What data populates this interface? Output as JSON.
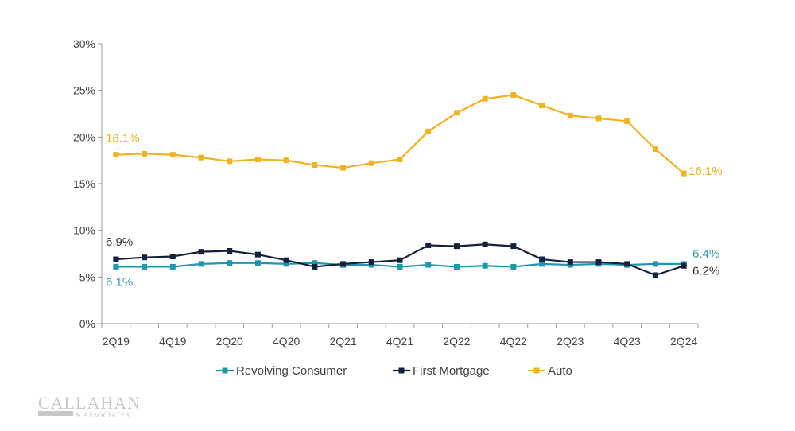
{
  "chart_data": {
    "type": "line",
    "title": "",
    "xlabel": "",
    "ylabel": "",
    "ylim": [
      0,
      30
    ],
    "yticks": [
      "0%",
      "5%",
      "10%",
      "15%",
      "20%",
      "25%",
      "30%"
    ],
    "x": [
      "2Q19",
      "3Q19",
      "4Q19",
      "1Q20",
      "2Q20",
      "3Q20",
      "4Q20",
      "1Q21",
      "2Q21",
      "3Q21",
      "4Q21",
      "1Q22",
      "2Q22",
      "3Q22",
      "4Q22",
      "1Q23",
      "2Q23",
      "3Q23",
      "4Q23",
      "1Q24",
      "2Q24"
    ],
    "xtick_labels": [
      "2Q19",
      "4Q19",
      "2Q20",
      "4Q20",
      "2Q21",
      "4Q21",
      "2Q22",
      "4Q22",
      "2Q23",
      "4Q23",
      "2Q24"
    ],
    "legend_position": "bottom",
    "grid": false,
    "series": [
      {
        "name": "Revolving Consumer",
        "color": "#1f96b0",
        "label_color": "#3a9aa4",
        "values": [
          6.1,
          6.1,
          6.1,
          6.4,
          6.5,
          6.5,
          6.4,
          6.5,
          6.3,
          6.3,
          6.1,
          6.3,
          6.1,
          6.2,
          6.1,
          6.4,
          6.3,
          6.4,
          6.3,
          6.4,
          6.4
        ],
        "start_label": "6.1%",
        "end_label": "6.4%"
      },
      {
        "name": "First Mortgage",
        "color": "#14213d",
        "label_color": "#333333",
        "values": [
          6.9,
          7.1,
          7.2,
          7.7,
          7.8,
          7.4,
          6.8,
          6.1,
          6.4,
          6.6,
          6.8,
          8.4,
          8.3,
          8.5,
          8.3,
          6.9,
          6.6,
          6.6,
          6.4,
          5.2,
          6.2
        ],
        "start_label": "6.9%",
        "end_label": "6.2%"
      },
      {
        "name": "Auto",
        "color": "#f0b323",
        "label_color": "#e8b020",
        "values": [
          18.1,
          18.2,
          18.1,
          17.8,
          17.4,
          17.6,
          17.5,
          17.0,
          16.7,
          17.2,
          17.6,
          20.6,
          22.6,
          24.1,
          24.5,
          23.4,
          22.3,
          22.0,
          21.7,
          18.7,
          16.1
        ],
        "start_label": "18.1%",
        "end_label": "16.1%"
      }
    ]
  },
  "logo": {
    "name": "CALLAHAN",
    "sub": "& ASSOCIATES"
  }
}
